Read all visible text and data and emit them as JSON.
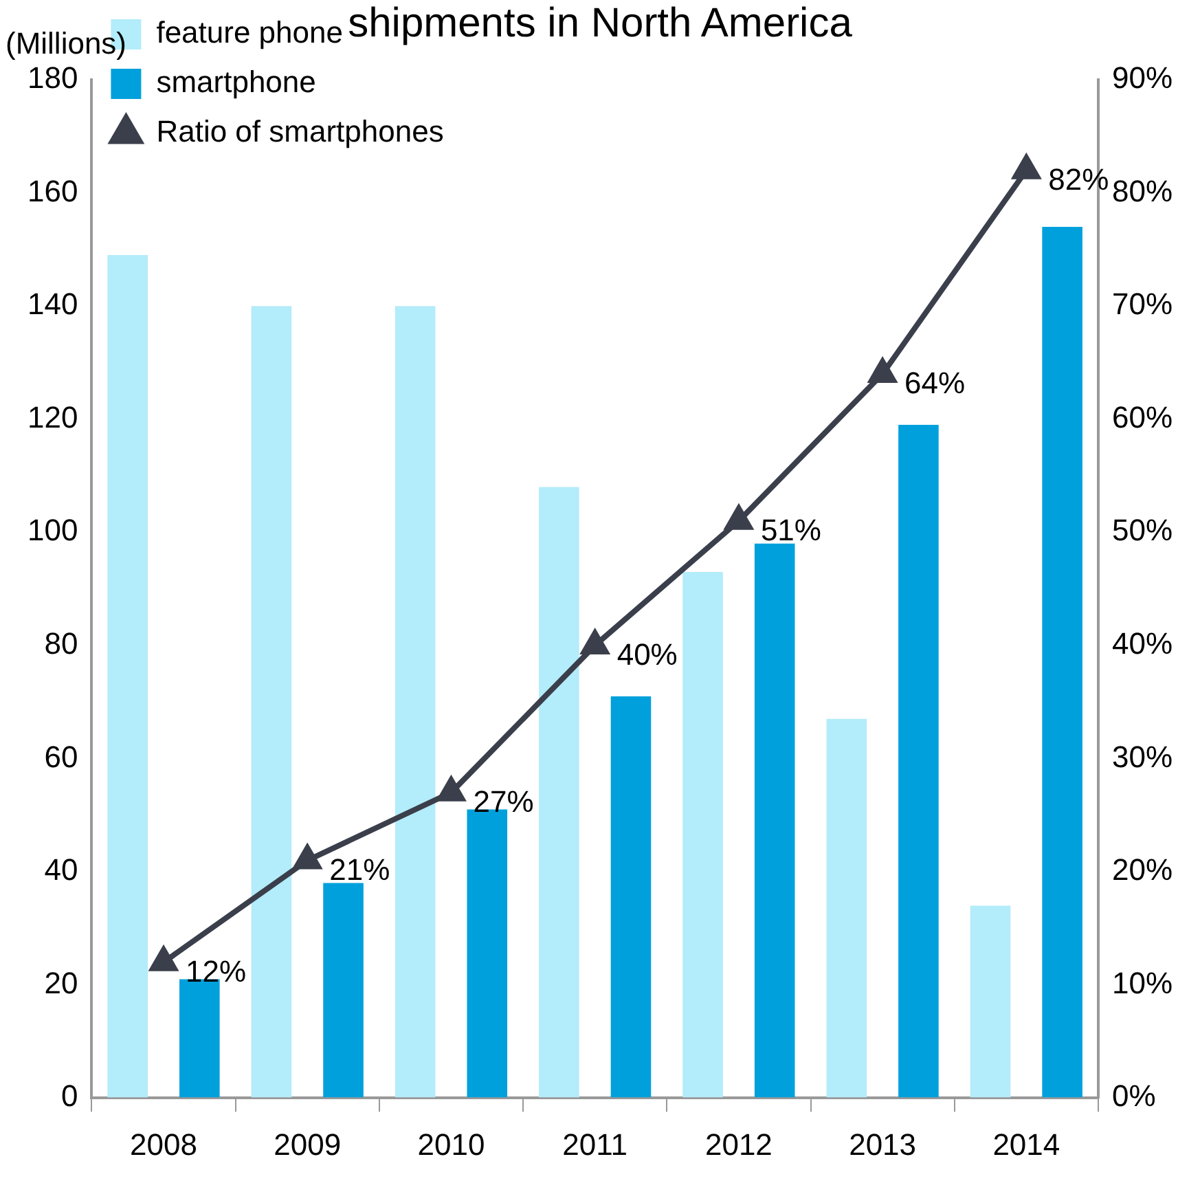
{
  "chart_data": {
    "type": "bar",
    "title": "shipments in North America",
    "ylabel": "(Millions)",
    "categories": [
      "2008",
      "2009",
      "2010",
      "2011",
      "2012",
      "2013",
      "2014"
    ],
    "series": [
      {
        "name": "feature phone",
        "color": "#b3ecfa",
        "values": [
          149,
          140,
          140,
          108,
          93,
          67,
          34
        ]
      },
      {
        "name": "smartphone",
        "color": "#00a0dc",
        "values": [
          21,
          38,
          51,
          71,
          98,
          119,
          154
        ]
      },
      {
        "name": "Ratio of smartphones",
        "type": "line",
        "axis": "y2",
        "color": "#3a3f4b",
        "marker": "triangle",
        "values": [
          12,
          21,
          27,
          40,
          51,
          64,
          82
        ],
        "value_labels": [
          "12%",
          "21%",
          "27%",
          "40%",
          "51%",
          "64%",
          "82%"
        ]
      }
    ],
    "ylim": [
      0,
      180
    ],
    "yticks": [
      0,
      20,
      40,
      60,
      80,
      100,
      120,
      140,
      160,
      180
    ],
    "y2lim": [
      0,
      90
    ],
    "y2ticks": [
      {
        "value": 0,
        "label": "0%"
      },
      {
        "value": 10,
        "label": "10%"
      },
      {
        "value": 20,
        "label": "20%"
      },
      {
        "value": 30,
        "label": "30%"
      },
      {
        "value": 40,
        "label": "40%"
      },
      {
        "value": 50,
        "label": "50%"
      },
      {
        "value": 60,
        "label": "60%"
      },
      {
        "value": 70,
        "label": "70%"
      },
      {
        "value": 80,
        "label": "80%"
      },
      {
        "value": 90,
        "label": "90%"
      }
    ],
    "grid": false,
    "legend": "top left"
  }
}
